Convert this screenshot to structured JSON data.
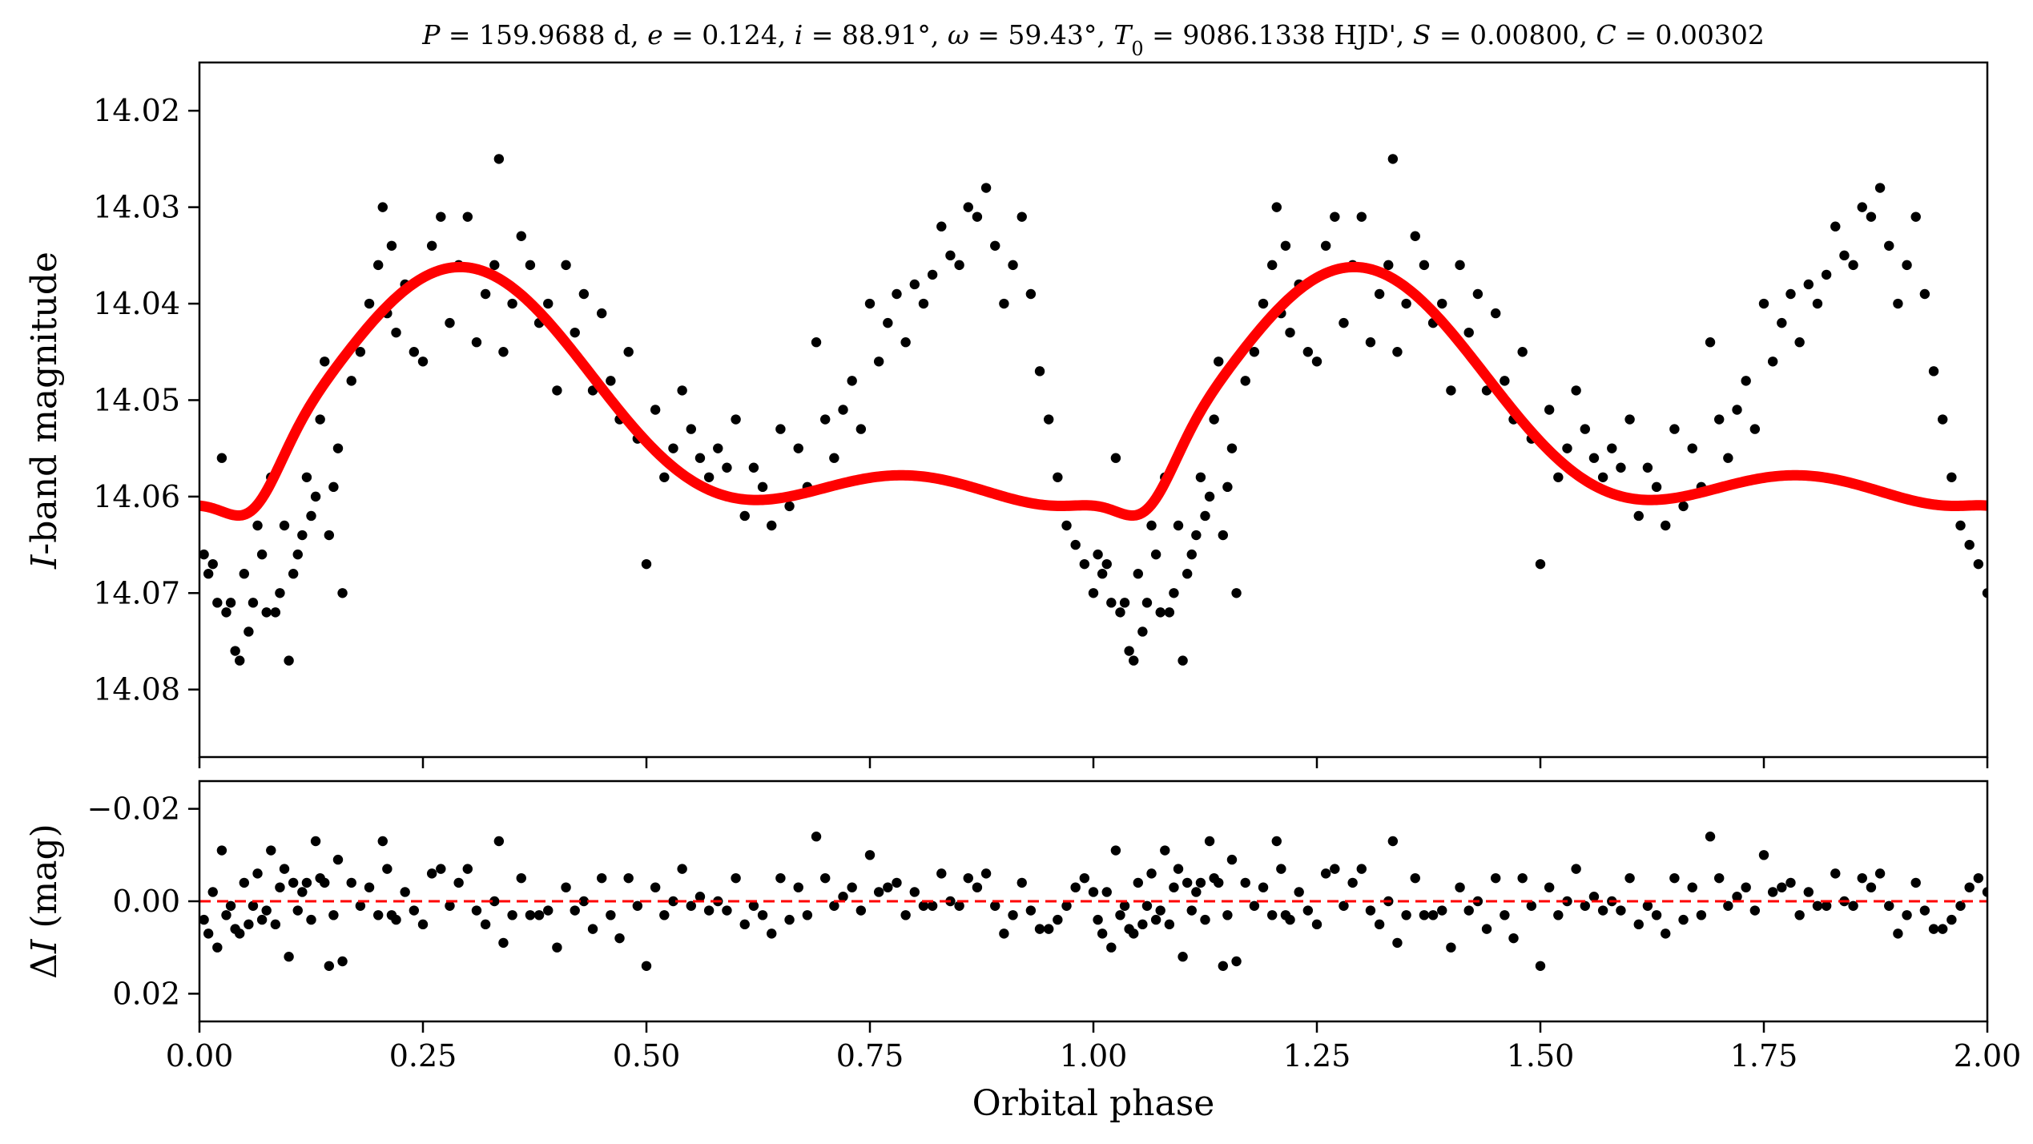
{
  "chart_data": [
    {
      "type": "scatter",
      "panel": "top",
      "title_parts": [
        {
          "t": "P",
          "italic": true
        },
        {
          "t": " = 159.9688 d, "
        },
        {
          "t": "e",
          "italic": true
        },
        {
          "t": " = 0.124, "
        },
        {
          "t": "i",
          "italic": true
        },
        {
          "t": " = 88.91°, "
        },
        {
          "t": "ω",
          "italic": true
        },
        {
          "t": " = 59.43°, "
        },
        {
          "t": "T",
          "italic": true
        },
        {
          "t": "0",
          "sub": true
        },
        {
          "t": " = 9086.1338 HJD', "
        },
        {
          "t": "S",
          "italic": true
        },
        {
          "t": " = 0.00800, "
        },
        {
          "t": "C",
          "italic": true
        },
        {
          "t": " = 0.00302"
        }
      ],
      "ylabel_parts": [
        {
          "t": "I",
          "italic": true
        },
        {
          "t": "-band magnitude"
        }
      ],
      "xlim": [
        0.0,
        2.0
      ],
      "ylim": [
        14.087,
        14.015
      ],
      "y_inverted": true,
      "yticks": [
        14.02,
        14.03,
        14.04,
        14.05,
        14.06,
        14.07,
        14.08
      ],
      "ytick_labels": [
        "14.02",
        "14.03",
        "14.04",
        "14.05",
        "14.06",
        "14.07",
        "14.08"
      ],
      "xticks": [
        0.0,
        0.25,
        0.5,
        0.75,
        1.0,
        1.25,
        1.5,
        1.75,
        2.0
      ],
      "grid": false,
      "series": [
        {
          "kind": "points",
          "color": "#000000",
          "x": [
            0.005,
            0.01,
            0.015,
            0.02,
            0.025,
            0.03,
            0.035,
            0.04,
            0.045,
            0.05,
            0.055,
            0.06,
            0.065,
            0.07,
            0.075,
            0.08,
            0.085,
            0.09,
            0.095,
            0.1,
            0.105,
            0.11,
            0.115,
            0.12,
            0.125,
            0.13,
            0.135,
            0.14,
            0.145,
            0.15,
            0.155,
            0.16,
            0.17,
            0.18,
            0.19,
            0.2,
            0.205,
            0.21,
            0.215,
            0.22,
            0.23,
            0.24,
            0.25,
            0.26,
            0.27,
            0.28,
            0.29,
            0.3,
            0.31,
            0.32,
            0.33,
            0.335,
            0.34,
            0.35,
            0.36,
            0.37,
            0.38,
            0.39,
            0.4,
            0.41,
            0.42,
            0.43,
            0.44,
            0.45,
            0.46,
            0.47,
            0.48,
            0.49,
            0.5,
            0.51,
            0.52,
            0.53,
            0.54,
            0.55,
            0.56,
            0.57,
            0.58,
            0.59,
            0.6,
            0.61,
            0.62,
            0.63,
            0.64,
            0.65,
            0.66,
            0.67,
            0.68,
            0.69,
            0.7,
            0.71,
            0.72,
            0.73,
            0.74,
            0.75,
            0.76,
            0.77,
            0.78,
            0.79,
            0.8,
            0.81,
            0.82,
            0.83,
            0.84,
            0.85,
            0.86,
            0.87,
            0.88,
            0.89,
            0.9,
            0.91,
            0.92,
            0.93,
            0.94,
            0.95,
            0.96,
            0.97,
            0.98,
            0.99,
            1.0
          ],
          "y": [
            14.066,
            14.068,
            14.067,
            14.071,
            14.056,
            14.072,
            14.071,
            14.076,
            14.077,
            14.068,
            14.074,
            14.071,
            14.063,
            14.066,
            14.072,
            14.058,
            14.072,
            14.07,
            14.063,
            14.077,
            14.068,
            14.066,
            14.064,
            14.058,
            14.062,
            14.06,
            14.052,
            14.046,
            14.064,
            14.059,
            14.055,
            14.07,
            14.048,
            14.045,
            14.04,
            14.036,
            14.03,
            14.041,
            14.034,
            14.043,
            14.038,
            14.045,
            14.046,
            14.034,
            14.031,
            14.042,
            14.036,
            14.031,
            14.044,
            14.039,
            14.036,
            14.025,
            14.045,
            14.04,
            14.033,
            14.036,
            14.042,
            14.04,
            14.049,
            14.036,
            14.043,
            14.039,
            14.049,
            14.041,
            14.048,
            14.052,
            14.045,
            14.054,
            14.067,
            14.051,
            14.058,
            14.055,
            14.049,
            14.053,
            14.056,
            14.058,
            14.055,
            14.057,
            14.052,
            14.062,
            14.057,
            14.059,
            14.063,
            14.053,
            14.061,
            14.055,
            14.059,
            14.044,
            14.052,
            14.056,
            14.051,
            14.048,
            14.053,
            14.04,
            14.046,
            14.042,
            14.039,
            14.044,
            14.038,
            14.04,
            14.037,
            14.032,
            14.035,
            14.036,
            14.03,
            14.031,
            14.028,
            14.034,
            14.04,
            14.036,
            14.031,
            14.039,
            14.047,
            14.052,
            14.058,
            14.063,
            14.065,
            14.067,
            14.07
          ]
        },
        {
          "kind": "model",
          "color": "#ff0000",
          "model": {
            "baseline": 14.0525,
            "min_phase": 0.06,
            "min_depth": 0.0175,
            "min_width": 0.15,
            "shape": "eccentric_ellipsoidal_heartbeat"
          }
        }
      ]
    },
    {
      "type": "scatter",
      "panel": "bottom",
      "xlabel": "Orbital phase",
      "ylabel_parts": [
        {
          "t": "Δ"
        },
        {
          "t": "I",
          "italic": true
        },
        {
          "t": " (mag)"
        }
      ],
      "xlim": [
        0.0,
        2.0
      ],
      "ylim": [
        0.026,
        -0.026
      ],
      "y_inverted": true,
      "yticks": [
        -0.02,
        0.0,
        0.02
      ],
      "ytick_labels": [
        "−0.02",
        "0.00",
        "0.02"
      ],
      "xticks": [
        0.0,
        0.25,
        0.5,
        0.75,
        1.0,
        1.25,
        1.5,
        1.75,
        2.0
      ],
      "xtick_labels": [
        "0.00",
        "0.25",
        "0.50",
        "0.75",
        "1.00",
        "1.25",
        "1.50",
        "1.75",
        "2.00"
      ],
      "zero_line_color": "#ff0000",
      "grid": false,
      "series": [
        {
          "kind": "points",
          "color": "#000000",
          "x": [
            0.005,
            0.01,
            0.015,
            0.02,
            0.025,
            0.03,
            0.035,
            0.04,
            0.045,
            0.05,
            0.055,
            0.06,
            0.065,
            0.07,
            0.075,
            0.08,
            0.085,
            0.09,
            0.095,
            0.1,
            0.105,
            0.11,
            0.115,
            0.12,
            0.125,
            0.13,
            0.135,
            0.14,
            0.145,
            0.15,
            0.155,
            0.16,
            0.17,
            0.18,
            0.19,
            0.2,
            0.205,
            0.21,
            0.215,
            0.22,
            0.23,
            0.24,
            0.25,
            0.26,
            0.27,
            0.28,
            0.29,
            0.3,
            0.31,
            0.32,
            0.33,
            0.335,
            0.34,
            0.35,
            0.36,
            0.37,
            0.38,
            0.39,
            0.4,
            0.41,
            0.42,
            0.43,
            0.44,
            0.45,
            0.46,
            0.47,
            0.48,
            0.49,
            0.5,
            0.51,
            0.52,
            0.53,
            0.54,
            0.55,
            0.56,
            0.57,
            0.58,
            0.59,
            0.6,
            0.61,
            0.62,
            0.63,
            0.64,
            0.65,
            0.66,
            0.67,
            0.68,
            0.69,
            0.7,
            0.71,
            0.72,
            0.73,
            0.74,
            0.75,
            0.76,
            0.77,
            0.78,
            0.79,
            0.8,
            0.81,
            0.82,
            0.83,
            0.84,
            0.85,
            0.86,
            0.87,
            0.88,
            0.89,
            0.9,
            0.91,
            0.92,
            0.93,
            0.94,
            0.95,
            0.96,
            0.97,
            0.98,
            0.99,
            1.0
          ],
          "y": [
            0.004,
            0.007,
            -0.002,
            0.01,
            -0.011,
            0.003,
            0.001,
            0.006,
            0.007,
            -0.004,
            0.005,
            0.001,
            -0.006,
            0.004,
            0.002,
            -0.011,
            0.005,
            -0.003,
            -0.007,
            0.012,
            -0.004,
            0.002,
            -0.002,
            -0.004,
            0.004,
            -0.013,
            -0.005,
            -0.004,
            0.014,
            0.003,
            -0.009,
            0.013,
            -0.004,
            0.001,
            -0.003,
            0.003,
            -0.013,
            -0.007,
            0.003,
            0.004,
            -0.002,
            0.002,
            0.005,
            -0.006,
            -0.007,
            0.001,
            -0.004,
            -0.007,
            0.002,
            0.005,
            0.0,
            -0.013,
            0.009,
            0.003,
            -0.005,
            0.003,
            0.003,
            0.002,
            0.01,
            -0.003,
            0.002,
            0.0,
            0.006,
            -0.005,
            0.003,
            0.008,
            -0.005,
            0.001,
            0.014,
            -0.003,
            0.003,
            0.0,
            -0.007,
            0.001,
            -0.001,
            0.002,
            0.0,
            0.002,
            -0.005,
            0.005,
            0.001,
            0.003,
            0.007,
            -0.005,
            0.004,
            -0.003,
            0.003,
            -0.014,
            -0.005,
            0.001,
            -0.001,
            -0.003,
            0.002,
            -0.01,
            -0.002,
            -0.003,
            -0.004,
            0.003,
            -0.002,
            0.001,
            0.001,
            -0.006,
            0.0,
            0.001,
            -0.005,
            -0.003,
            -0.006,
            0.001,
            0.007,
            0.003,
            -0.004,
            0.002,
            0.006,
            0.006,
            0.004,
            0.001,
            -0.003,
            -0.005,
            -0.002
          ]
        }
      ]
    }
  ]
}
